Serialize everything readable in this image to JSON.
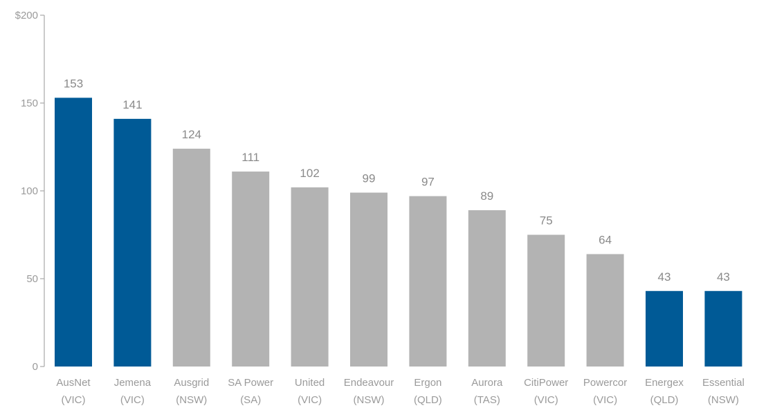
{
  "chart_data": {
    "type": "bar",
    "title": "",
    "xlabel": "",
    "ylabel": "",
    "ylim": [
      0,
      200
    ],
    "yticks": [
      {
        "value": 0,
        "label": "0"
      },
      {
        "value": 50,
        "label": "50"
      },
      {
        "value": 100,
        "label": "100"
      },
      {
        "value": 150,
        "label": "150"
      },
      {
        "value": 200,
        "label": "$200"
      }
    ],
    "grid": false,
    "bars": [
      {
        "name": "AusNet",
        "state": "(VIC)",
        "value": 153,
        "label": "153",
        "highlight": true
      },
      {
        "name": "Jemena",
        "state": "(VIC)",
        "value": 141,
        "label": "141",
        "highlight": true
      },
      {
        "name": "Ausgrid",
        "state": "(NSW)",
        "value": 124,
        "label": "124",
        "highlight": false
      },
      {
        "name": "SA Power",
        "state": "(SA)",
        "value": 111,
        "label": "111",
        "highlight": false
      },
      {
        "name": "United",
        "state": "(VIC)",
        "value": 102,
        "label": "102",
        "highlight": false
      },
      {
        "name": "Endeavour",
        "state": "(NSW)",
        "value": 99,
        "label": "99",
        "highlight": false
      },
      {
        "name": "Ergon",
        "state": "(QLD)",
        "value": 97,
        "label": "97",
        "highlight": false
      },
      {
        "name": "Aurora",
        "state": "(TAS)",
        "value": 89,
        "label": "89",
        "highlight": false
      },
      {
        "name": "CitiPower",
        "state": "(VIC)",
        "value": 75,
        "label": "75",
        "highlight": false
      },
      {
        "name": "Powercor",
        "state": "(VIC)",
        "value": 64,
        "label": "64",
        "highlight": false
      },
      {
        "name": "Energex",
        "state": "(QLD)",
        "value": 43,
        "label": "43",
        "highlight": true
      },
      {
        "name": "Essential",
        "state": "(NSW)",
        "value": 43,
        "label": "43",
        "highlight": true
      }
    ],
    "colors": {
      "highlight": "#005a96",
      "default": "#b3b3b3"
    }
  }
}
